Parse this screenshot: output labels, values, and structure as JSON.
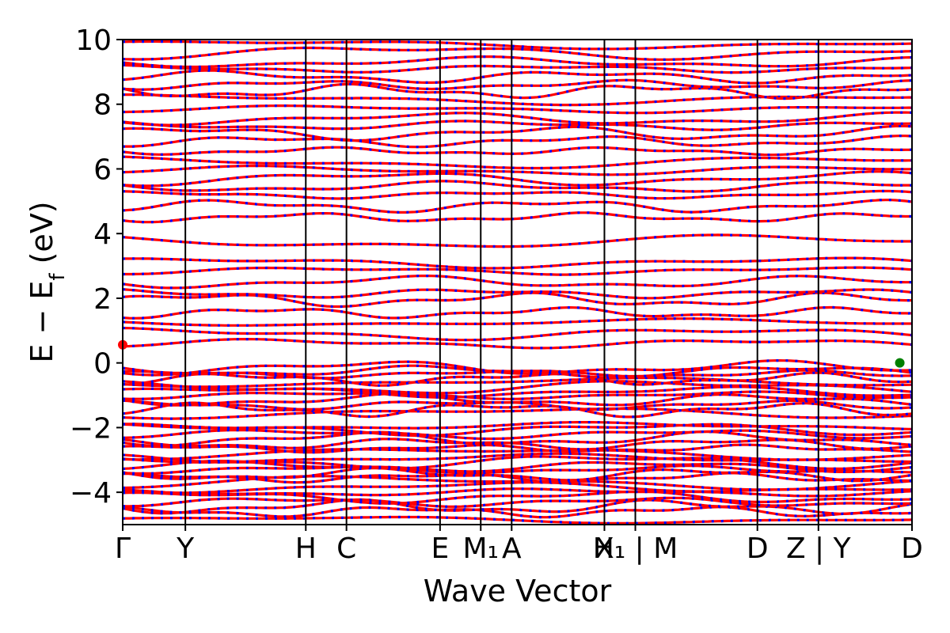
{
  "chart_data": {
    "type": "line",
    "xlabel": "Wave Vector",
    "ylabel": "E − E_f (eV)",
    "ylabel_parts": {
      "main": "E − E",
      "sub": "f",
      "unit": "(eV)"
    },
    "ylim": [
      -5,
      10
    ],
    "y_ticks": [
      -4,
      -2,
      0,
      2,
      4,
      6,
      8,
      10
    ],
    "y_tick_labels": [
      "−4",
      "−2",
      "0",
      "2",
      "4",
      "6",
      "8",
      "10"
    ],
    "kpath_positions": [
      0,
      0.77,
      2.25,
      2.75,
      3.9,
      4.4,
      4.78,
      5.92,
      6.3,
      7.8,
      8.55,
      9.7
    ],
    "kpath_xmax": 9.7,
    "kpoint_labels": [
      "Γ",
      "Y",
      "H",
      "C",
      "E",
      "M₁",
      "A",
      "X",
      "H₁ | M",
      "D",
      "Z | Y",
      "D"
    ],
    "segment_breaks": [
      6.3,
      8.55
    ],
    "grid": false,
    "legend": "none",
    "band_colors": {
      "spin_up": "#ff0000",
      "spin_down": "#0000ff"
    },
    "band_energies": [
      -4.85,
      -4.6,
      -4.45,
      -4.3,
      -4.15,
      -4.0,
      -3.85,
      -3.7,
      -3.55,
      -3.45,
      -3.3,
      -3.2,
      -3.05,
      -2.95,
      -2.8,
      -2.65,
      -2.5,
      -2.35,
      -2.2,
      -2.05,
      -1.95,
      -1.55,
      -1.45,
      -1.3,
      -1.15,
      -1.0,
      -0.9,
      -0.75,
      -0.6,
      -0.5,
      -0.35,
      -0.25,
      -0.15,
      0.6,
      0.9,
      1.25,
      1.55,
      1.95,
      2.15,
      2.5,
      2.85,
      3.1,
      3.75,
      4.5,
      4.85,
      5.2,
      5.45,
      5.7,
      5.95,
      6.2,
      6.55,
      6.85,
      7.1,
      7.35,
      7.55,
      7.85,
      8.15,
      8.4,
      8.6,
      8.85,
      9.1,
      9.3,
      9.6,
      9.85
    ],
    "markers": [
      {
        "name": "CBM",
        "x": 0.0,
        "y": 0.56,
        "color": "#ff0000"
      },
      {
        "name": "VBM",
        "x": 9.55,
        "y": 0.0,
        "color": "#008000"
      }
    ]
  }
}
